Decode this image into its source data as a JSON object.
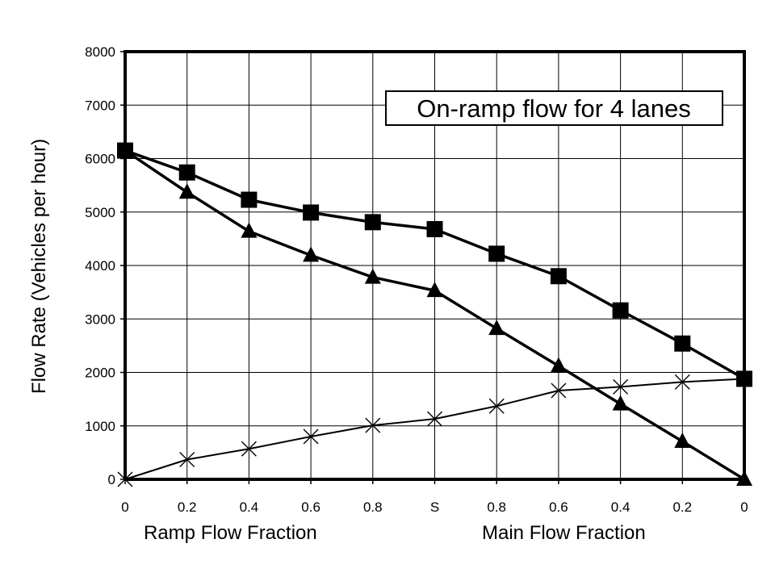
{
  "chart_data": {
    "type": "line",
    "title": "On-ramp flow for 4 lanes",
    "ylabel": "Flow Rate (Vehicles per hour)",
    "xlabel_left": "Ramp Flow Fraction",
    "xlabel_right": "Main Flow Fraction",
    "categories": [
      "0",
      "0.2",
      "0.4",
      "0.6",
      "0.8",
      "S",
      "0.8",
      "0.6",
      "0.4",
      "0.2",
      "0"
    ],
    "ylim": [
      0,
      8000
    ],
    "yticks": [
      0,
      1000,
      2000,
      3000,
      4000,
      5000,
      6000,
      7000,
      8000
    ],
    "grid": true,
    "series": [
      {
        "marker": "square",
        "values": [
          6150,
          5740,
          5230,
          4990,
          4810,
          4680,
          4220,
          3800,
          3160,
          2540,
          1880
        ]
      },
      {
        "marker": "triangle",
        "values": [
          6150,
          5370,
          4640,
          4190,
          3780,
          3530,
          2820,
          2120,
          1410,
          710,
          0
        ]
      },
      {
        "marker": "x",
        "values": [
          0,
          370,
          570,
          800,
          1010,
          1130,
          1370,
          1660,
          1730,
          1820,
          1880
        ]
      }
    ]
  }
}
